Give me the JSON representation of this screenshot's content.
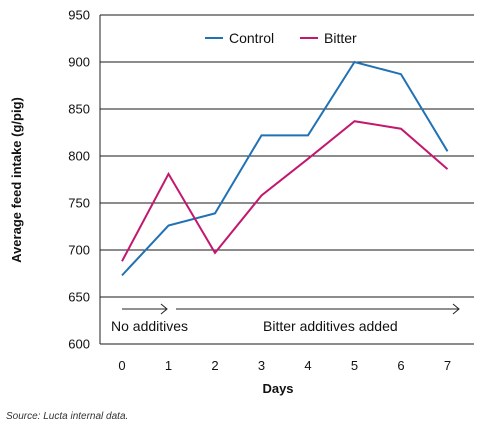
{
  "chart_data": {
    "type": "line",
    "x": [
      0,
      1,
      2,
      3,
      4,
      5,
      6,
      7
    ],
    "series": [
      {
        "name": "Control",
        "color": "#2171b5",
        "values": [
          673,
          726,
          739,
          822,
          822,
          900,
          887,
          805
        ]
      },
      {
        "name": "Bitter",
        "color": "#c2186e",
        "values": [
          688,
          781,
          697,
          758,
          797,
          837,
          829,
          786
        ]
      }
    ],
    "xlabel": "Days",
    "ylabel": "Average feed intake (g/pig)",
    "ylim": [
      600,
      950
    ],
    "yticks": [
      600,
      650,
      700,
      750,
      800,
      850,
      900,
      950
    ],
    "xticks": [
      0,
      1,
      2,
      3,
      4,
      5,
      6,
      7
    ],
    "grid": "horizontal",
    "legend": "top-center",
    "annotations": [
      {
        "text": "No additives",
        "x_from": 0,
        "x_to": 1
      },
      {
        "text": "Bitter additives added",
        "x_from": 1,
        "x_to": 7
      }
    ]
  },
  "source_note": "Source: Lucta internal data."
}
